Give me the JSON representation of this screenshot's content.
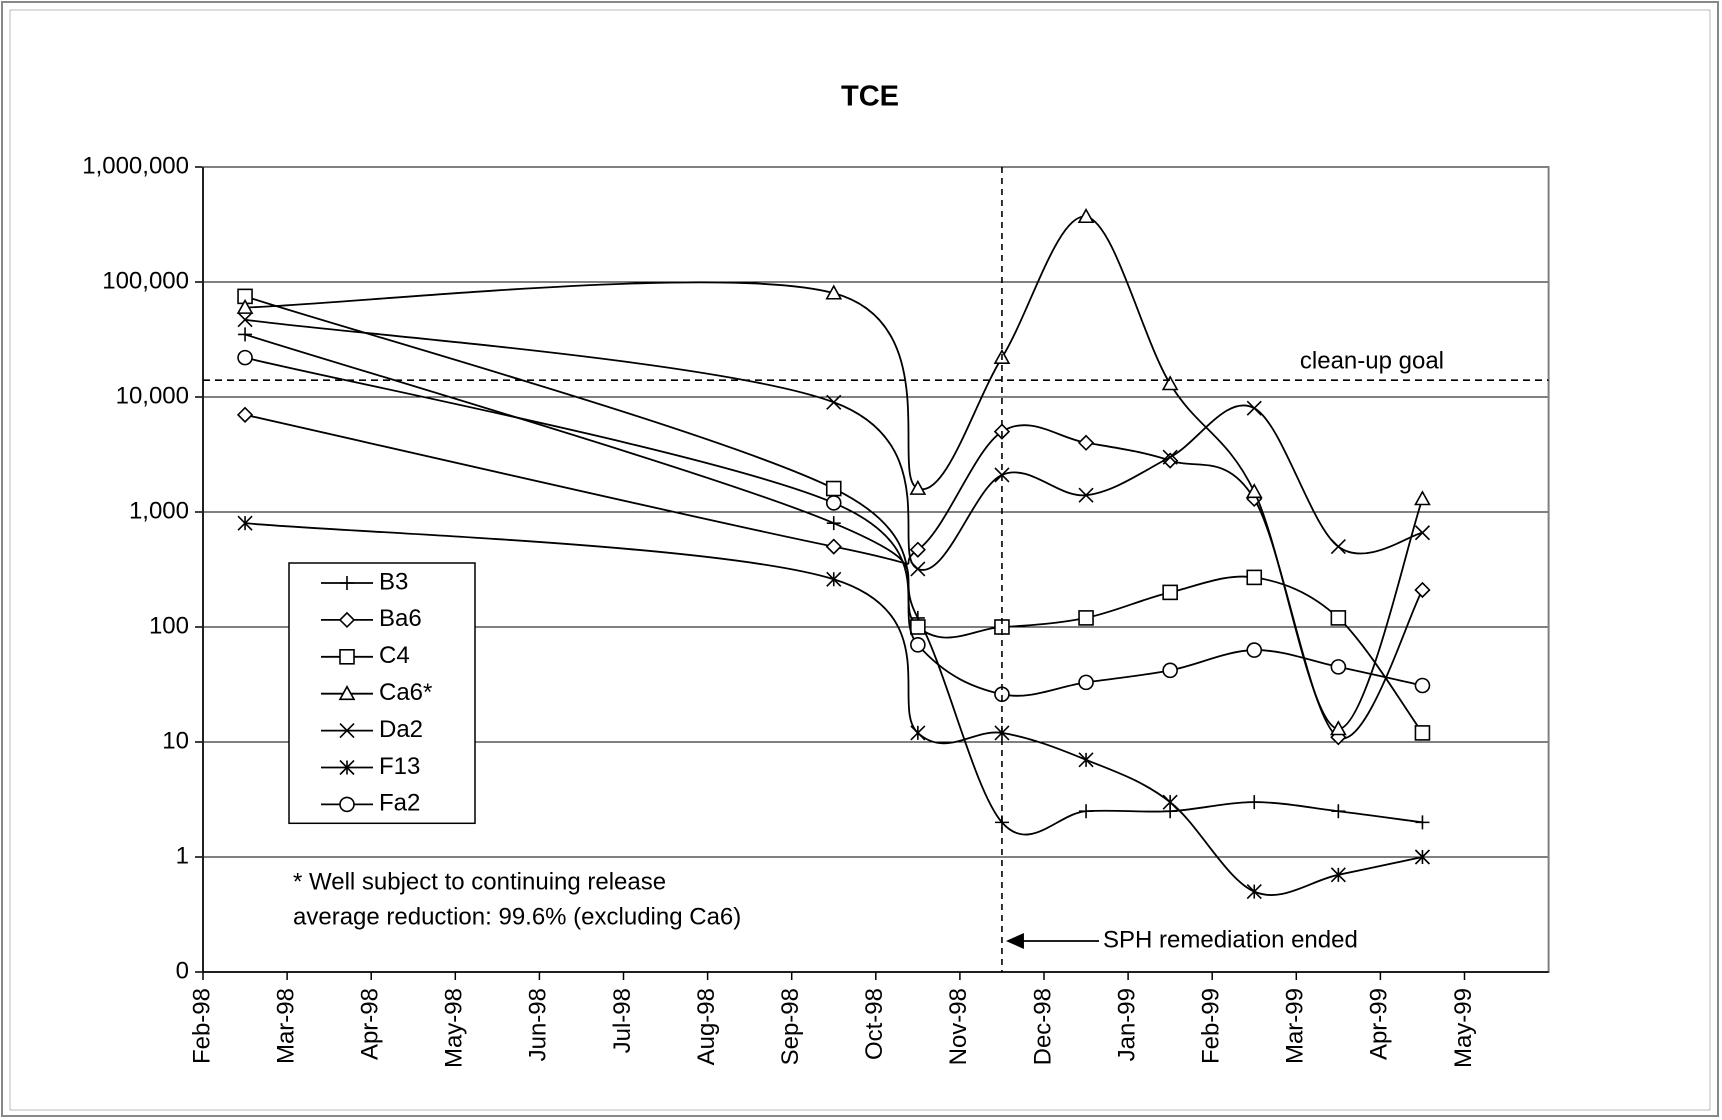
{
  "chart_data": {
    "type": "line",
    "title": "TCE",
    "x": [
      "1998-02",
      "1998-09",
      "1998-10",
      "1998-11",
      "1998-12",
      "1999-01",
      "1999-02",
      "1999-03",
      "1999-04"
    ],
    "series": [
      {
        "name": "B3",
        "color": "#000000",
        "marker": "plus",
        "values": [
          35000,
          800,
          120,
          2,
          2.5,
          2.5,
          3,
          2.5,
          2
        ]
      },
      {
        "name": "Ba6",
        "color": "#000000",
        "marker": "diamond",
        "values": [
          7000,
          500,
          470,
          5000,
          4000,
          2800,
          1300,
          11,
          210
        ]
      },
      {
        "name": "C4",
        "color": "#000000",
        "marker": "square",
        "values": [
          75000,
          1600,
          100,
          100,
          120,
          200,
          270,
          120,
          12
        ]
      },
      {
        "name": "Ca6*",
        "color": "#000000",
        "marker": "triangle",
        "values": [
          60000,
          80000,
          1600,
          22000,
          370000,
          13000,
          1500,
          13,
          1300
        ]
      },
      {
        "name": "Da2",
        "color": "#000000",
        "marker": "x",
        "values": [
          47000,
          9000,
          320,
          2100,
          1400,
          3000,
          8000,
          500,
          660
        ]
      },
      {
        "name": "F13",
        "color": "#000000",
        "marker": "asterisk",
        "values": [
          800,
          260,
          12,
          12,
          7,
          3,
          0.5,
          0.7,
          1
        ]
      },
      {
        "name": "Fa2",
        "color": "#000000",
        "marker": "circle",
        "values": [
          22000,
          1200,
          70,
          26,
          33,
          42,
          63,
          45,
          31
        ]
      }
    ],
    "xlim": [
      "1998-02",
      "1999-06"
    ],
    "xticks": [
      {
        "value": "1998-02",
        "label": "Feb-98"
      },
      {
        "value": "1998-03",
        "label": "Mar-98"
      },
      {
        "value": "1998-04",
        "label": "Apr-98"
      },
      {
        "value": "1998-05",
        "label": "May-98"
      },
      {
        "value": "1998-06",
        "label": "Jun-98"
      },
      {
        "value": "1998-07",
        "label": "Jul-98"
      },
      {
        "value": "1998-08",
        "label": "Aug-98"
      },
      {
        "value": "1998-09",
        "label": "Sep-98"
      },
      {
        "value": "1998-10",
        "label": "Oct-98"
      },
      {
        "value": "1998-11",
        "label": "Nov-98"
      },
      {
        "value": "1998-12",
        "label": "Dec-98"
      },
      {
        "value": "1999-01",
        "label": "Jan-99"
      },
      {
        "value": "1999-02",
        "label": "Feb-99"
      },
      {
        "value": "1999-03",
        "label": "Mar-99"
      },
      {
        "value": "1999-04",
        "label": "Apr-99"
      },
      {
        "value": "1999-05",
        "label": "May-99"
      }
    ],
    "ylim": [
      0.1,
      1000000
    ],
    "log_y": true,
    "yticks": [
      {
        "value": 0.1,
        "label": "0"
      },
      1,
      10,
      100,
      {
        "value": 1000,
        "label": "1,000"
      },
      {
        "value": 10000,
        "label": "10,000"
      },
      {
        "value": 100000,
        "label": "100,000"
      },
      {
        "value": 1000000,
        "label": "1,000,000"
      }
    ],
    "grid": true,
    "legend": "lower left",
    "reference_lines": [
      {
        "axis": "y",
        "value": 14000,
        "label": "clean-up goal"
      },
      {
        "axis": "x",
        "value": "1998-11",
        "label": "SPH remediation ended"
      }
    ],
    "notes": [
      "* Well subject to continuing release",
      "average reduction: 99.6% (excluding Ca6)"
    ]
  }
}
